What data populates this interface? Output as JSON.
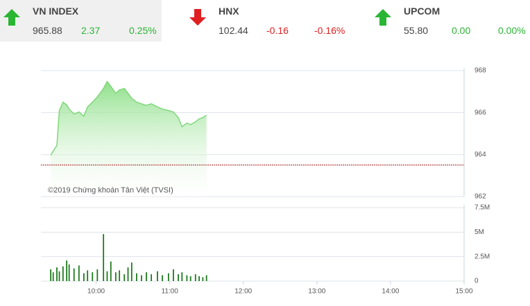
{
  "header": {
    "items": [
      {
        "name": "VN INDEX",
        "value": "965.88",
        "change": "2.37",
        "percent": "0.25%"
      },
      {
        "name": "HNX",
        "value": "102.44",
        "change": "-0.16",
        "percent": "-0.16%"
      },
      {
        "name": "UPCOM",
        "value": "55.80",
        "change": "0.00",
        "percent": "0.00%"
      }
    ]
  },
  "chart_data": [
    {
      "type": "area",
      "annotation": "©2019 Chứng khoán Tân Việt (TVSI)",
      "color": "#7fd77a",
      "x": [
        563,
        565,
        568,
        570,
        573,
        576,
        578,
        582,
        586,
        590,
        593,
        597,
        601,
        606,
        609,
        612,
        616,
        619,
        623,
        626,
        629,
        633,
        637,
        641,
        645,
        650,
        654,
        659,
        663,
        667,
        670,
        674,
        677,
        681,
        684,
        687,
        690
      ],
      "values": [
        963.97,
        964.17,
        964.43,
        966.1,
        966.5,
        966.37,
        966.17,
        965.93,
        966.03,
        965.83,
        966.27,
        966.5,
        966.75,
        967.15,
        967.48,
        967.25,
        966.92,
        967.08,
        967.15,
        966.92,
        966.68,
        966.5,
        966.42,
        966.35,
        966.42,
        966.27,
        966.17,
        966.1,
        966.03,
        965.76,
        965.33,
        965.5,
        965.43,
        965.56,
        965.7,
        965.76,
        965.88
      ],
      "reference_line": 963.51,
      "reference_color": "#a31515",
      "xlim": [
        555,
        900
      ],
      "ylim": [
        962,
        968
      ],
      "yticks": [
        962,
        964,
        966,
        968
      ],
      "grid": true
    },
    {
      "type": "bar",
      "color": "#1d7a1d",
      "x": [
        563,
        565,
        568,
        570,
        573,
        576,
        578,
        582,
        586,
        590,
        593,
        597,
        601,
        606,
        609,
        612,
        616,
        619,
        623,
        626,
        629,
        633,
        637,
        641,
        645,
        650,
        654,
        659,
        663,
        667,
        670,
        674,
        677,
        681,
        684,
        687,
        690
      ],
      "values": [
        1200000,
        900000,
        1400000,
        1000000,
        1500000,
        2100000,
        1700000,
        1300000,
        1600000,
        800000,
        1100000,
        900000,
        1200000,
        4800000,
        1000000,
        2000000,
        900000,
        1100000,
        700000,
        1400000,
        1900000,
        800000,
        600000,
        900000,
        700000,
        1000000,
        600000,
        800000,
        1200000,
        700000,
        900000,
        600000,
        500000,
        700000,
        500000,
        400000,
        600000
      ],
      "xlim": [
        555,
        900
      ],
      "xticks": [
        {
          "value": 600,
          "label": "10:00"
        },
        {
          "value": 660,
          "label": "11:00"
        },
        {
          "value": 720,
          "label": "12:00"
        },
        {
          "value": 780,
          "label": "13:00"
        },
        {
          "value": 840,
          "label": "14:00"
        },
        {
          "value": 900,
          "label": "15:00"
        }
      ],
      "ylim": [
        0,
        7500000
      ],
      "yticks": [
        0,
        {
          "value": 2500000,
          "label": "2.5M"
        },
        {
          "value": 5000000,
          "label": "5M"
        },
        {
          "value": 7500000,
          "label": "7.5M"
        }
      ],
      "grid": true
    }
  ]
}
